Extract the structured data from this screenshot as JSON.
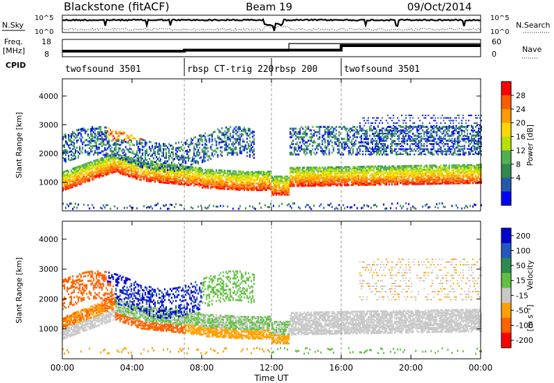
{
  "header": {
    "station": "Blackstone (fitACF)",
    "beam": "Beam 19",
    "date": "09/Oct/2014"
  },
  "summary_panels": {
    "nsky_label": "N.Sky",
    "nsky_ticks": [
      "10^5",
      "10^0"
    ],
    "nsearch_label": "N.Search",
    "nsearch_ticks": [
      "10^5",
      "10^0"
    ],
    "freq_label_line1": "Freq.",
    "freq_label_line2": "[MHz]",
    "freq_ticks": [
      "18",
      "8"
    ],
    "nave_label": "Nave",
    "nave_ticks": [
      "60",
      "0"
    ],
    "cpid_label": "CPID"
  },
  "cpid_segments": [
    {
      "name": "twofsound 3501",
      "start_hour": 0
    },
    {
      "name": "rbsp CT-trig 220",
      "start_hour": 7
    },
    {
      "name": "rbsp 200",
      "start_hour": 12
    },
    {
      "name": "twofsound 3501",
      "start_hour": 16
    }
  ],
  "chart_data": [
    {
      "type": "heatmap",
      "panel": "power",
      "ylabel": "Slant Range [km]",
      "xlabel": "Time UT",
      "xlim_hours": [
        0,
        24
      ],
      "ylim": [
        0,
        4600
      ],
      "yticks": [
        1000,
        2000,
        3000,
        4000
      ],
      "xtick_labels": [
        "00:00",
        "04:00",
        "08:00",
        "12:00",
        "16:00",
        "20:00",
        "00:00"
      ],
      "colorbar": {
        "label": "Power [dB]",
        "ticks": [
          "28",
          "24",
          "20",
          "16",
          "12",
          "8",
          "4"
        ],
        "colors": [
          "#ff0000",
          "#ff5a00",
          "#ff9a00",
          "#ffd800",
          "#b8e000",
          "#50b050",
          "#2f8a4f",
          "#2458a8",
          "#0000ff"
        ]
      },
      "bands": [
        {
          "name": "main_echo_band",
          "t_start": 0,
          "t_end": 24,
          "range_km": [
            900,
            1500
          ],
          "power_db": [
            16,
            30
          ]
        },
        {
          "name": "upper_band",
          "t_start": 0,
          "t_end": 11,
          "range_km": [
            1500,
            2800
          ],
          "power_db": [
            8,
            20
          ]
        },
        {
          "name": "late_scatter",
          "t_start": 17,
          "t_end": 24,
          "range_km": [
            2000,
            3400
          ],
          "power_db": [
            4,
            10
          ]
        }
      ]
    },
    {
      "type": "heatmap",
      "panel": "velocity",
      "ylabel": "Slant Range [km]",
      "xlabel": "Time UT",
      "xlim_hours": [
        0,
        24
      ],
      "ylim": [
        0,
        4600
      ],
      "yticks": [
        1000,
        2000,
        3000,
        4000
      ],
      "xtick_labels": [
        "00:00",
        "04:00",
        "08:00",
        "12:00",
        "16:00",
        "20:00",
        "00:00"
      ],
      "colorbar": {
        "label_main": "Velocity",
        "label_unit": "[m s⁻¹]",
        "ticks": [
          "200",
          "100",
          "50",
          "15",
          "-15",
          "-50",
          "-100",
          "-200"
        ],
        "colors": [
          "#0000d0",
          "#2458c0",
          "#2f8a4f",
          "#60c040",
          "#c8c8c8",
          "#ffa000",
          "#ff6000",
          "#ff0000"
        ]
      }
    }
  ]
}
